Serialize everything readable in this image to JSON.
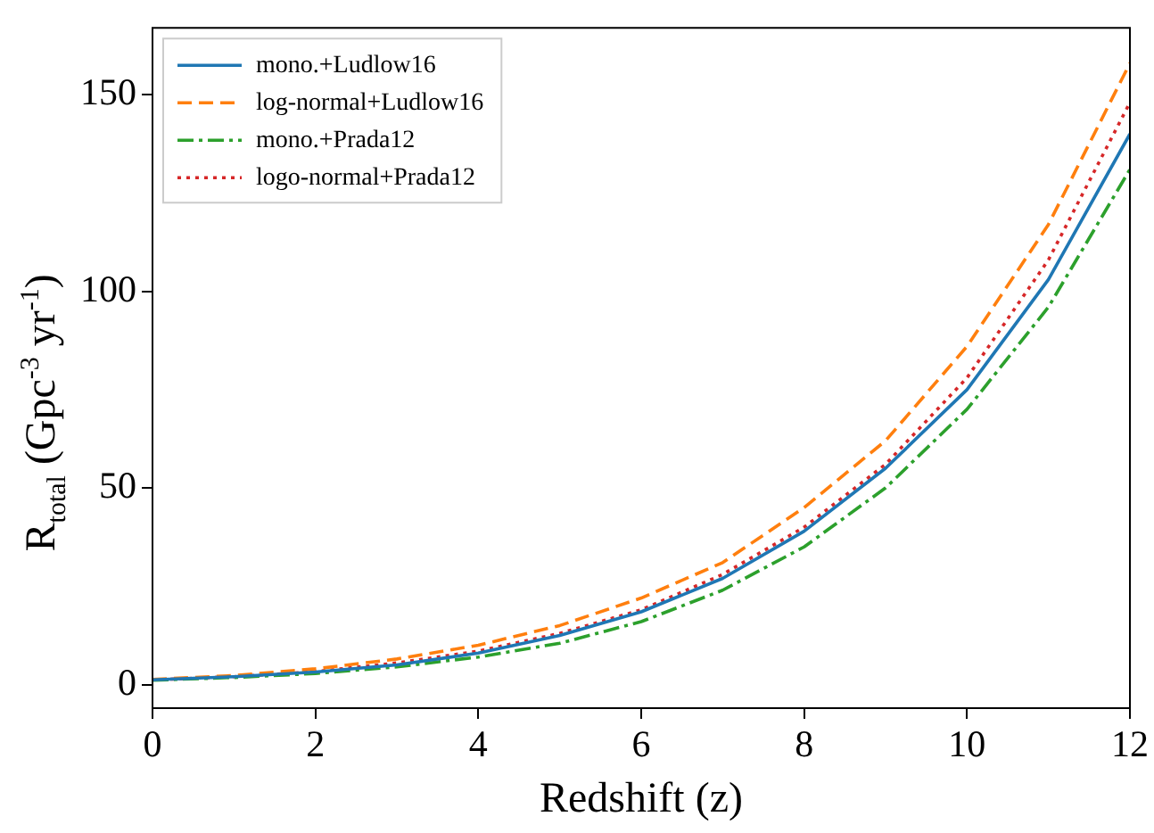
{
  "chart_data": {
    "type": "line",
    "xlabel": "Redshift (z)",
    "ylabel": "R$_{total}$ (Gpc$^{-3}$ yr$^{-1}$)",
    "x": [
      0,
      1,
      2,
      3,
      4,
      5,
      6,
      7,
      8,
      9,
      10,
      11,
      12
    ],
    "series": [
      {
        "name": "mono.+Ludlow16",
        "color": "#1f77b4",
        "line_style": "solid",
        "values": [
          1.2,
          2,
          3.2,
          5,
          8,
          12.5,
          18.5,
          27,
          39,
          55,
          75,
          103,
          140
        ]
      },
      {
        "name": "log-normal+Ludlow16",
        "color": "#ff7f0e",
        "line_style": "dashed",
        "values": [
          1.3,
          2.3,
          4,
          6.5,
          10,
          15,
          22,
          31,
          45,
          62,
          86,
          117,
          158
        ]
      },
      {
        "name": "mono.+Prada12",
        "color": "#2ca02c",
        "line_style": "dashdot",
        "values": [
          1.1,
          1.8,
          2.8,
          4.5,
          7,
          10.5,
          16,
          24,
          35,
          50,
          70,
          96,
          131
        ]
      },
      {
        "name": "logo-normal+Prada12",
        "color": "#d62728",
        "line_style": "dotted",
        "values": [
          1.2,
          2,
          3.3,
          5.5,
          8.5,
          13,
          19,
          28,
          40,
          56,
          78,
          108,
          148
        ]
      }
    ],
    "xlim": [
      0,
      12
    ],
    "xticks": [
      0,
      2,
      4,
      6,
      8,
      10,
      12
    ],
    "ylim": [
      -6,
      167
    ],
    "yticks": [
      0,
      50,
      100,
      150
    ],
    "grid": false,
    "legend": "top left",
    "marker": "none"
  }
}
